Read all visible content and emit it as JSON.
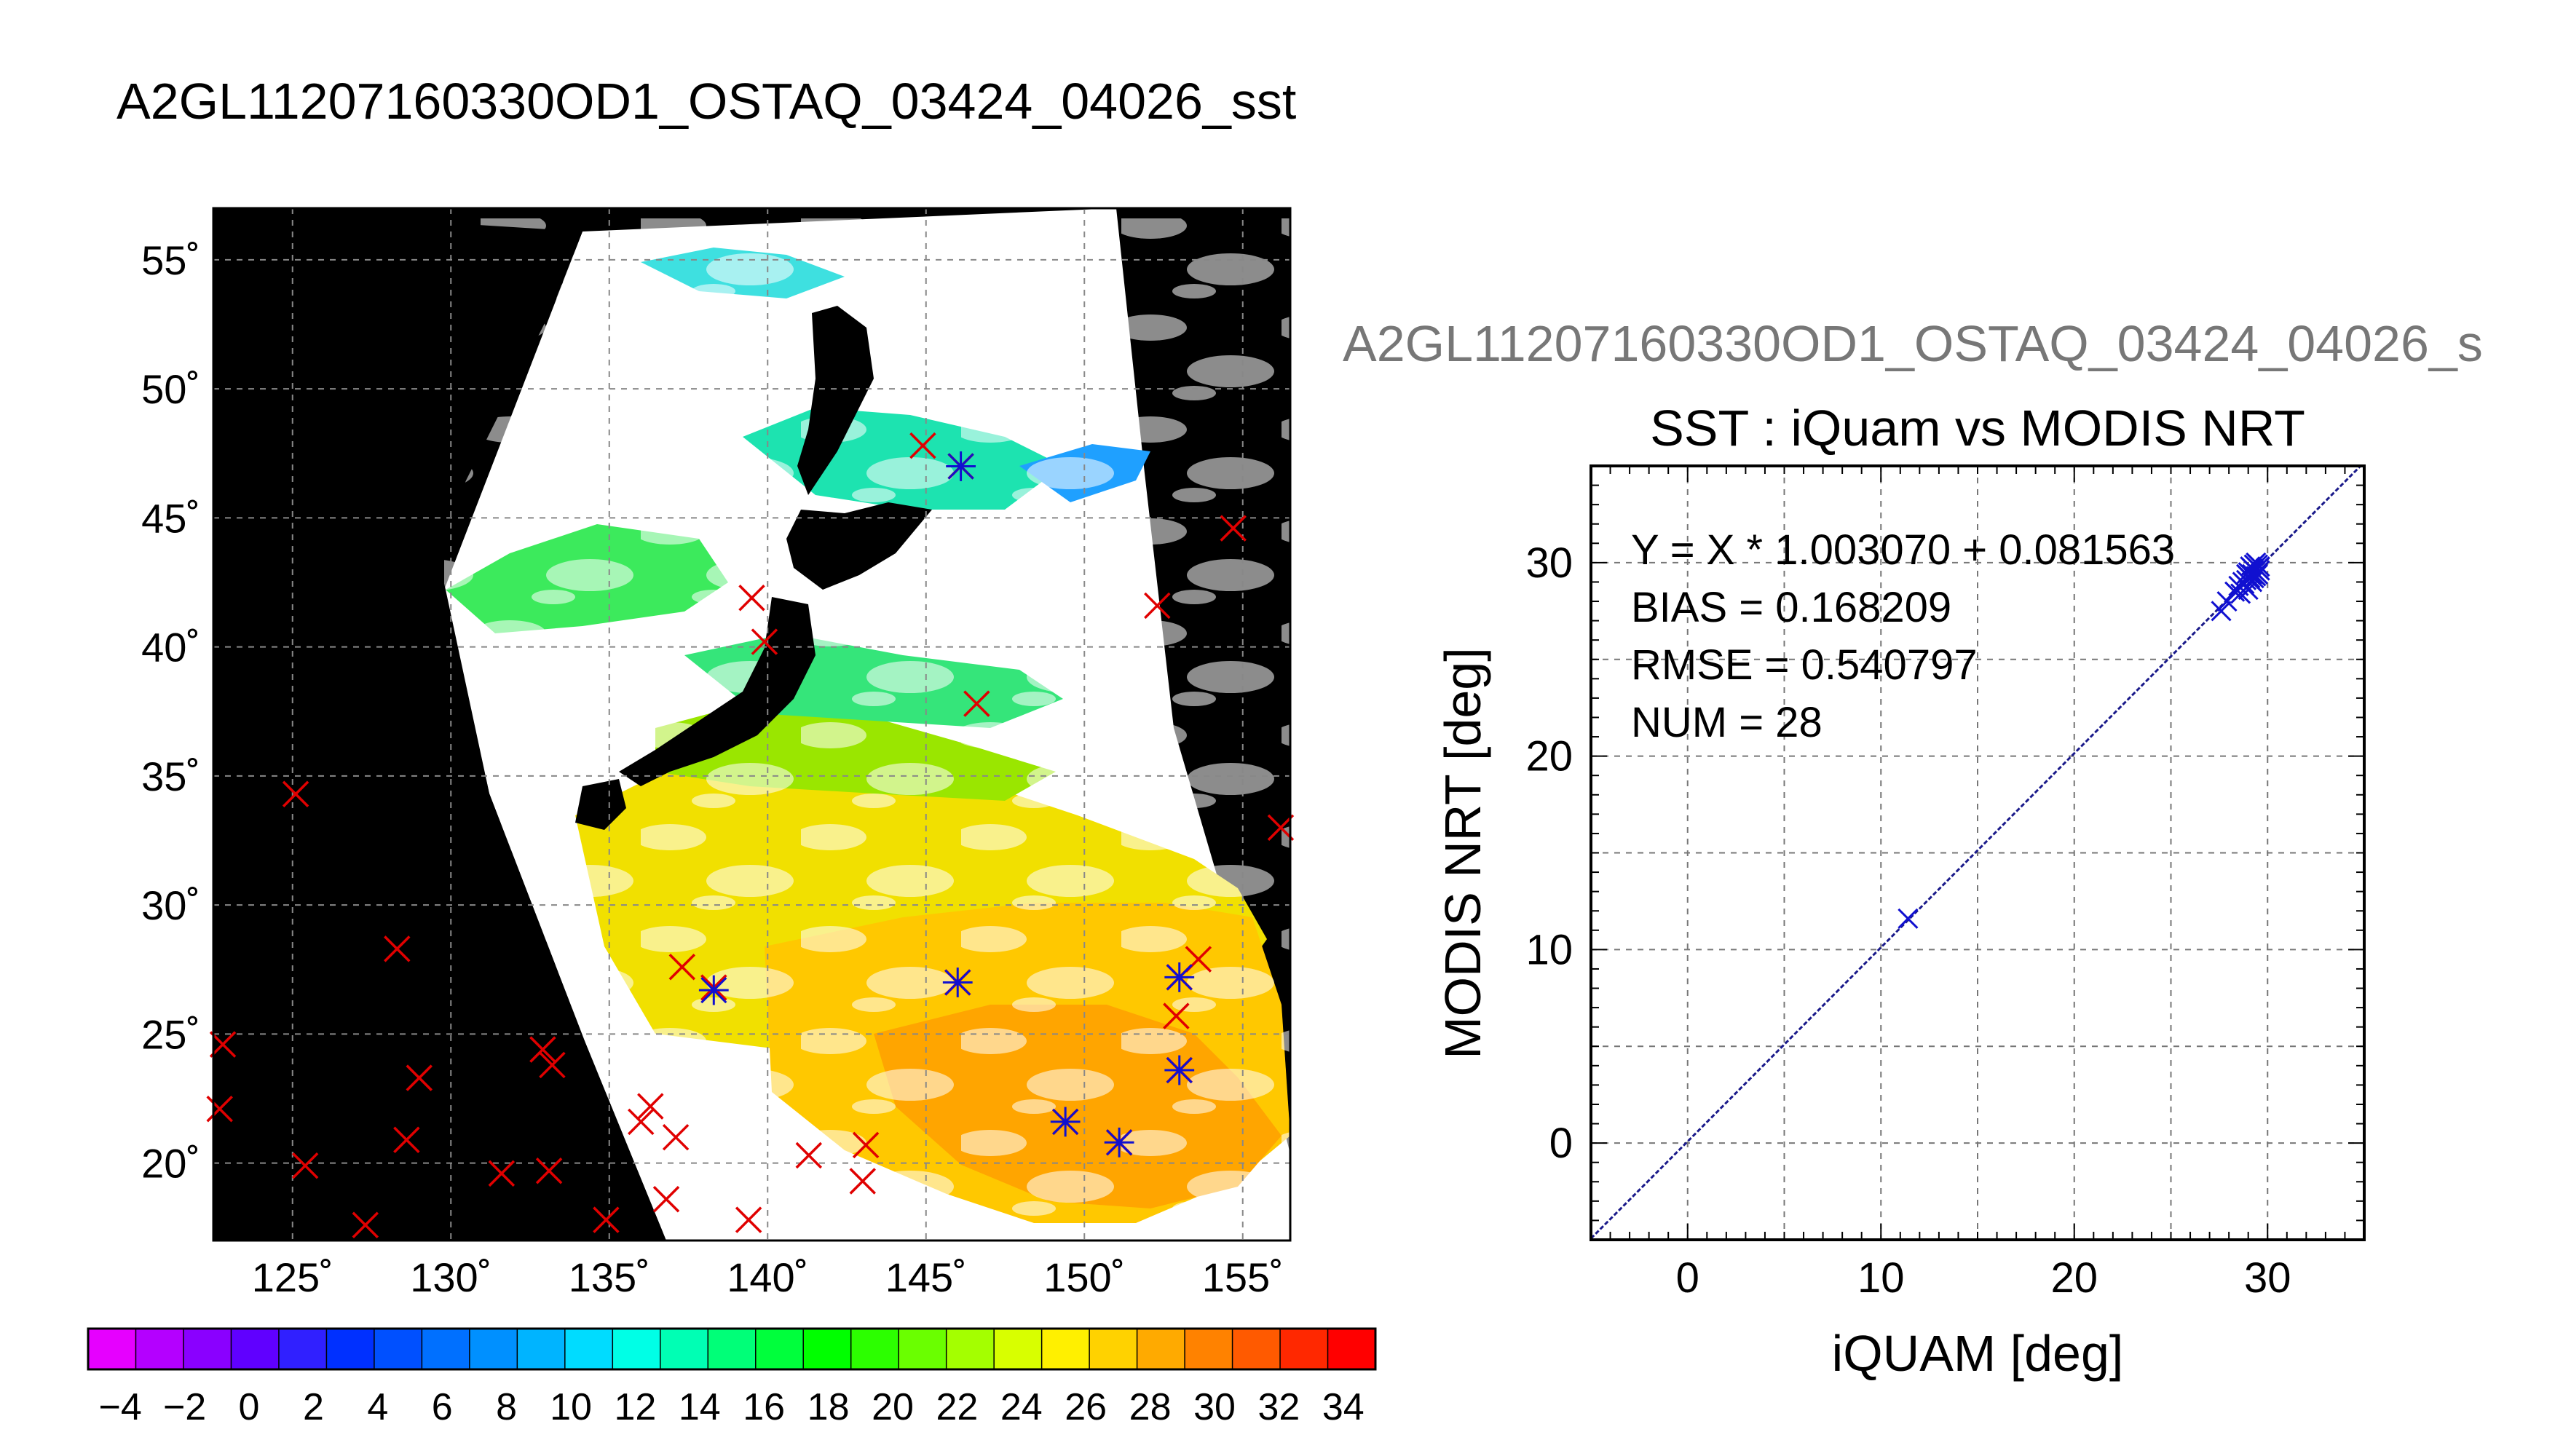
{
  "page": {
    "main_title": "A2GL11207160330OD1_OSTAQ_03424_04026_sst"
  },
  "colors": {
    "land": "#000000",
    "cloud": "#ffffff",
    "insitu_marker": "#e00000",
    "match_marker": "#1010d0",
    "fit_line": "#1a1a8a",
    "grid": "#555555"
  },
  "chart_data": [
    {
      "type": "scatter",
      "name": "map",
      "map": "sst-swath",
      "xlim": [
        122.5,
        156.5
      ],
      "ylim": [
        17,
        57
      ],
      "x_ticks": [
        125,
        130,
        135,
        140,
        145,
        150,
        155
      ],
      "y_ticks": [
        20,
        25,
        30,
        35,
        40,
        45,
        50,
        55
      ],
      "x_tick_labels": [
        "125˚",
        "130˚",
        "135˚",
        "140˚",
        "145˚",
        "150˚",
        "155˚"
      ],
      "y_tick_labels": [
        "20˚",
        "25˚",
        "30˚",
        "35˚",
        "40˚",
        "45˚",
        "50˚",
        "55˚"
      ],
      "grid": true,
      "insitu_points": [
        [
          125.1,
          34.3
        ],
        [
          122.8,
          24.6
        ],
        [
          122.7,
          22.1
        ],
        [
          125.4,
          19.9
        ],
        [
          127.3,
          17.6
        ],
        [
          128.3,
          28.3
        ],
        [
          129.0,
          23.3
        ],
        [
          128.6,
          20.9
        ],
        [
          131.6,
          19.6
        ],
        [
          132.9,
          24.4
        ],
        [
          133.2,
          23.8
        ],
        [
          133.1,
          19.7
        ],
        [
          134.9,
          17.8
        ],
        [
          136.0,
          21.6
        ],
        [
          136.3,
          22.2
        ],
        [
          136.8,
          18.6
        ],
        [
          137.1,
          21.0
        ],
        [
          139.4,
          17.8
        ],
        [
          137.3,
          27.6
        ],
        [
          138.3,
          26.8
        ],
        [
          139.5,
          41.9
        ],
        [
          139.9,
          40.2
        ],
        [
          141.3,
          20.3
        ],
        [
          143.1,
          20.7
        ],
        [
          143.0,
          19.3
        ],
        [
          144.9,
          47.8
        ],
        [
          146.1,
          47.0
        ],
        [
          146.6,
          37.8
        ],
        [
          146.0,
          27.0
        ],
        [
          149.4,
          21.6
        ],
        [
          151.1,
          20.8
        ],
        [
          152.3,
          41.6
        ],
        [
          152.9,
          25.7
        ],
        [
          153.0,
          27.2
        ],
        [
          153.6,
          27.9
        ],
        [
          153.0,
          23.6
        ],
        [
          154.7,
          44.6
        ],
        [
          156.2,
          33.0
        ]
      ],
      "matchups": [
        [
          138.3,
          26.7
        ],
        [
          146.1,
          47.0
        ],
        [
          146.0,
          27.0
        ],
        [
          149.4,
          21.6
        ],
        [
          151.1,
          20.8
        ],
        [
          153.0,
          27.2
        ],
        [
          153.0,
          23.6
        ]
      ]
    },
    {
      "type": "scatter",
      "name": "comparison",
      "subtitle": "A2GL11207160330OD1_OSTAQ_03424_04026_s",
      "title": "SST : iQuam vs MODIS NRT",
      "xlabel": "iQUAM [deg]",
      "ylabel": "MODIS NRT [deg]",
      "xlim": [
        -5,
        35
      ],
      "ylim": [
        -5,
        35
      ],
      "x_ticks": [
        0,
        10,
        20,
        30
      ],
      "y_ticks": [
        0,
        10,
        20,
        30
      ],
      "grid": true,
      "stats": [
        "Y = X * 1.003070 + 0.081563",
        "BIAS = 0.168209",
        "RMSE = 0.540797",
        "NUM = 28"
      ],
      "fit": {
        "slope": 1.00307,
        "intercept": 0.081563
      },
      "points": [
        [
          11.4,
          11.6
        ],
        [
          27.6,
          27.5
        ],
        [
          27.9,
          28.0
        ],
        [
          28.3,
          28.5
        ],
        [
          28.5,
          28.8
        ],
        [
          28.6,
          28.4
        ],
        [
          28.8,
          28.9
        ],
        [
          28.9,
          29.1
        ],
        [
          29.0,
          28.6
        ],
        [
          29.0,
          29.5
        ],
        [
          29.1,
          29.2
        ],
        [
          29.1,
          29.8
        ],
        [
          29.2,
          29.0
        ],
        [
          29.2,
          29.4
        ],
        [
          29.3,
          29.6
        ],
        [
          29.3,
          29.9
        ],
        [
          29.4,
          29.3
        ],
        [
          29.4,
          30.0
        ],
        [
          29.5,
          29.7
        ],
        [
          29.5,
          29.4
        ],
        [
          29.6,
          29.8
        ],
        [
          29.6,
          29.6
        ],
        [
          28.7,
          29.0
        ],
        [
          29.0,
          29.3
        ],
        [
          29.2,
          29.7
        ],
        [
          28.9,
          29.4
        ],
        [
          29.3,
          29.2
        ],
        [
          29.5,
          29.9
        ]
      ]
    },
    {
      "type": "heatmap",
      "name": "colorbar",
      "range": [
        -5,
        35
      ],
      "tick_labels": [
        "−4",
        "−2",
        "0",
        "2",
        "4",
        "6",
        "8",
        "10",
        "12",
        "14",
        "16",
        "18",
        "20",
        "22",
        "24",
        "26",
        "28",
        "30",
        "32",
        "34"
      ],
      "colors": [
        "#e600ff",
        "#b400ff",
        "#8a00ff",
        "#6000ff",
        "#3020ff",
        "#0030ff",
        "#0050ff",
        "#0070ff",
        "#0090ff",
        "#00b4ff",
        "#00dcff",
        "#00ffe6",
        "#00ffb4",
        "#00ff78",
        "#00ff3c",
        "#00ff00",
        "#2cff00",
        "#6aff00",
        "#a4ff00",
        "#d8ff00",
        "#fff000",
        "#ffd200",
        "#ffaa00",
        "#ff8200",
        "#ff5a00",
        "#ff2800",
        "#ff0000"
      ]
    }
  ]
}
